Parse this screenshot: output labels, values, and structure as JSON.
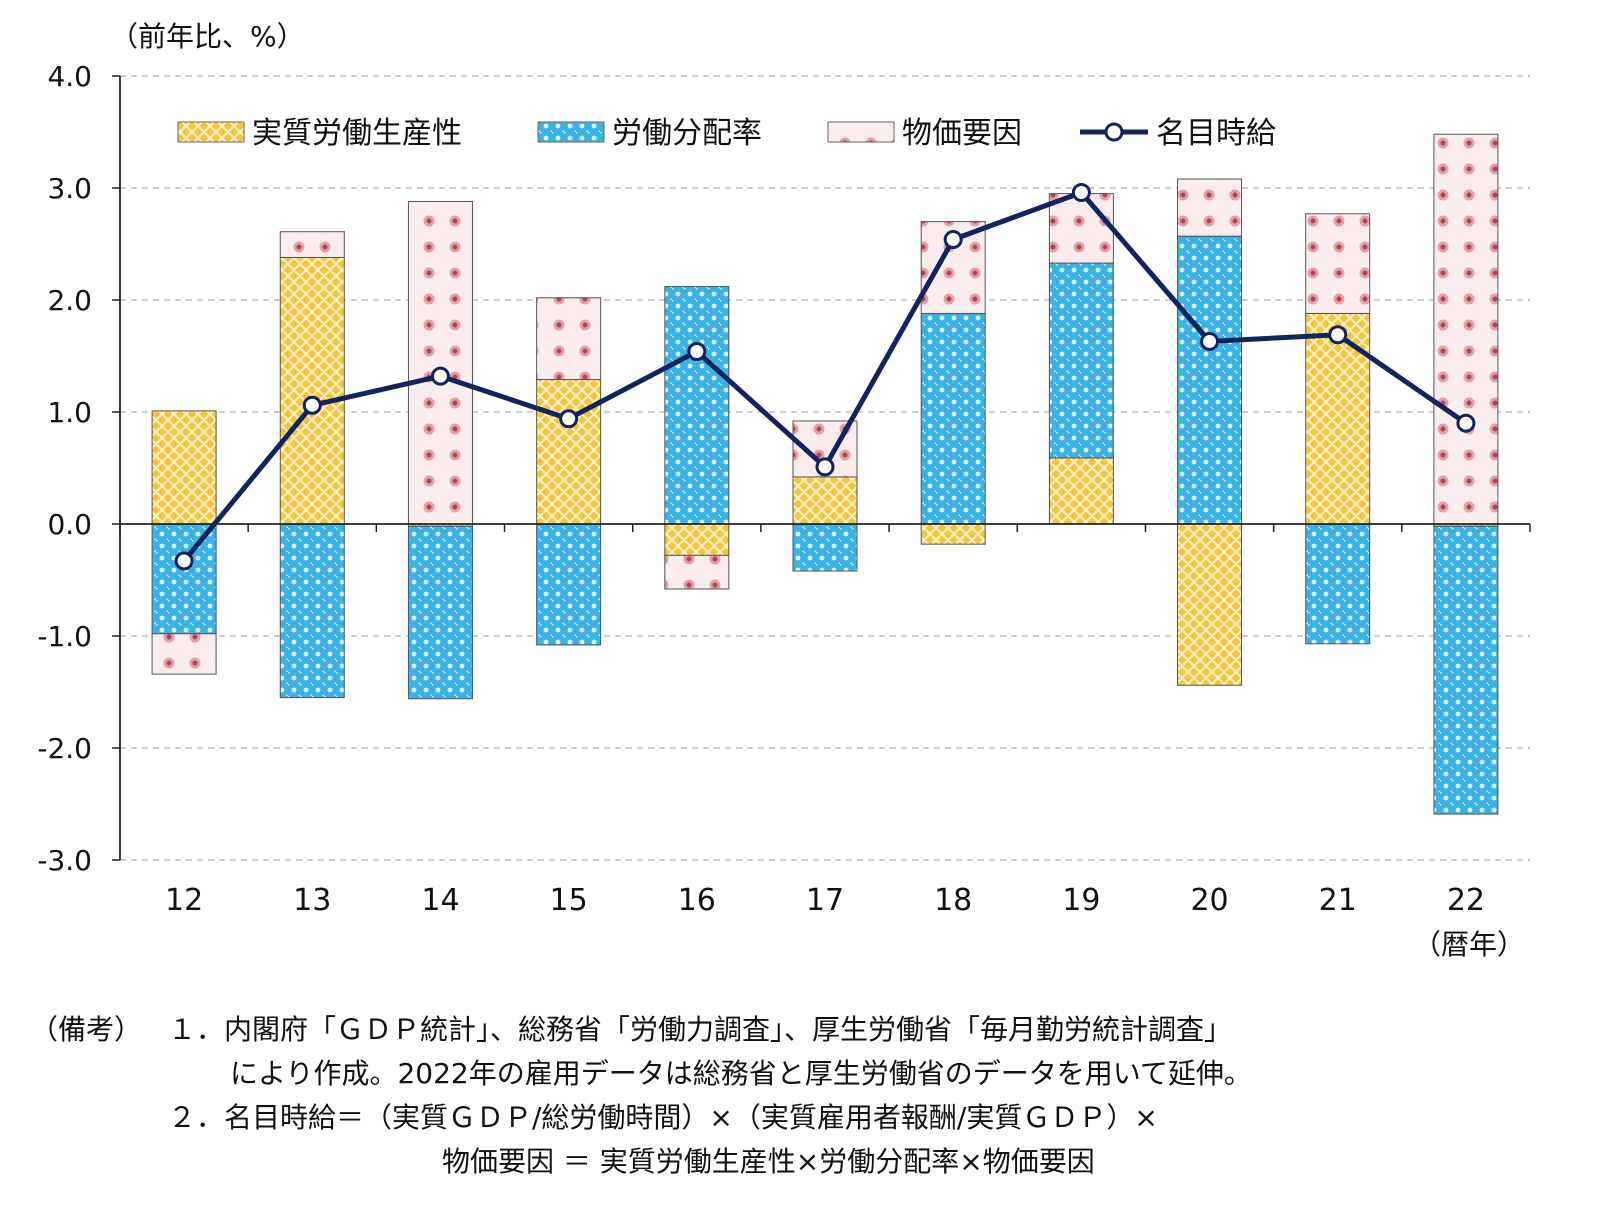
{
  "chart_data": {
    "type": "bar",
    "unit_label": "（前年比、%）",
    "x_unit_label": "（暦年）",
    "categories": [
      "12",
      "13",
      "14",
      "15",
      "16",
      "17",
      "18",
      "19",
      "20",
      "21",
      "22"
    ],
    "ylim": [
      -3.0,
      4.0
    ],
    "yticks": [
      "4.0",
      "3.0",
      "2.0",
      "1.0",
      "0.0",
      "-1.0",
      "-2.0",
      "-3.0"
    ],
    "grid": true,
    "legend_position": "top",
    "series": [
      {
        "name": "実質労働生産性",
        "kind": "stacked-bar",
        "color": "#F5C542",
        "values": [
          1.01,
          2.38,
          -0.02,
          1.29,
          -0.28,
          0.42,
          -0.18,
          0.59,
          -1.44,
          1.88,
          -0.02
        ]
      },
      {
        "name": "労働分配率",
        "kind": "stacked-bar",
        "color": "#3BB3E6",
        "values": [
          -0.98,
          -1.55,
          -1.54,
          -1.08,
          2.12,
          -0.42,
          1.88,
          1.74,
          2.57,
          -1.07,
          -2.57
        ]
      },
      {
        "name": "物価要因",
        "kind": "stacked-bar",
        "color": "#F2C9CC",
        "values": [
          -0.36,
          0.23,
          2.88,
          0.73,
          -0.3,
          0.5,
          0.82,
          0.62,
          0.51,
          0.89,
          3.48
        ]
      },
      {
        "name": "名目時給",
        "kind": "line",
        "color": "#0F2460",
        "values": [
          -0.33,
          1.06,
          1.32,
          0.94,
          1.54,
          0.51,
          2.54,
          2.96,
          1.63,
          1.69,
          0.9
        ]
      }
    ]
  },
  "notes": {
    "label": "（備考）",
    "line1": "１．内閣府「ＧＤＰ統計」、総務省「労働力調査」、厚生労働省「毎月勤労統計調査」",
    "line2": "により作成。2022年の雇用データは総務省と厚生労働省のデータを用いて延伸。",
    "line3": "２．名目時給＝（実質ＧＤＰ/総労働時間）×（実質雇用者報酬/実質ＧＤＰ）×",
    "line4": "物価要因 ＝ 実質労働生産性×労働分配率×物価要因"
  }
}
